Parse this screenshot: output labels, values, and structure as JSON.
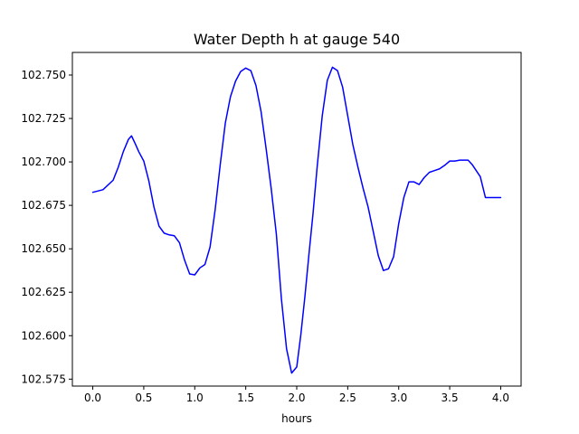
{
  "chart_data": {
    "type": "line",
    "title": "Water Depth h at gauge 540",
    "xlabel": "hours",
    "ylabel": "",
    "xlim": [
      -0.2,
      4.2
    ],
    "ylim": [
      102.571,
      102.763
    ],
    "xticks": [
      0.0,
      0.5,
      1.0,
      1.5,
      2.0,
      2.5,
      3.0,
      3.5,
      4.0
    ],
    "xtick_labels": [
      "0.0",
      "0.5",
      "1.0",
      "1.5",
      "2.0",
      "2.5",
      "3.0",
      "3.5",
      "4.0"
    ],
    "yticks": [
      102.575,
      102.6,
      102.625,
      102.65,
      102.675,
      102.7,
      102.725,
      102.75
    ],
    "ytick_labels": [
      "102.575",
      "102.600",
      "102.625",
      "102.650",
      "102.675",
      "102.700",
      "102.725",
      "102.750"
    ],
    "grid": false,
    "legend": "none",
    "series": [
      {
        "color": "#0000ff",
        "x": [
          0.0,
          0.1,
          0.2,
          0.25,
          0.3,
          0.35,
          0.38,
          0.42,
          0.45,
          0.5,
          0.55,
          0.6,
          0.65,
          0.7,
          0.75,
          0.8,
          0.85,
          0.9,
          0.95,
          1.0,
          1.05,
          1.1,
          1.15,
          1.2,
          1.25,
          1.3,
          1.35,
          1.4,
          1.45,
          1.5,
          1.55,
          1.6,
          1.65,
          1.7,
          1.75,
          1.8,
          1.85,
          1.9,
          1.95,
          2.0,
          2.04,
          2.08,
          2.12,
          2.16,
          2.2,
          2.25,
          2.3,
          2.35,
          2.4,
          2.45,
          2.5,
          2.55,
          2.6,
          2.65,
          2.7,
          2.75,
          2.8,
          2.85,
          2.9,
          2.95,
          3.0,
          3.05,
          3.1,
          3.15,
          3.2,
          3.25,
          3.3,
          3.35,
          3.4,
          3.45,
          3.5,
          3.55,
          3.6,
          3.65,
          3.68,
          3.72,
          3.8,
          3.85,
          3.9,
          3.95,
          4.0
        ],
        "y": [
          102.6825,
          102.684,
          102.6895,
          102.697,
          102.706,
          102.713,
          102.715,
          102.71,
          102.706,
          102.7005,
          102.689,
          102.674,
          102.663,
          102.659,
          102.658,
          102.6575,
          102.6535,
          102.6435,
          102.6355,
          102.635,
          102.639,
          102.641,
          102.651,
          102.6725,
          102.6985,
          102.7225,
          102.7375,
          102.7465,
          102.752,
          102.754,
          102.7525,
          102.744,
          102.729,
          102.7075,
          102.6845,
          102.6585,
          102.621,
          102.5925,
          102.5785,
          102.582,
          102.6005,
          102.6225,
          102.647,
          102.6705,
          102.697,
          102.7265,
          102.747,
          102.7545,
          102.7525,
          102.743,
          102.7265,
          102.71,
          102.697,
          102.685,
          102.674,
          102.66,
          102.646,
          102.6375,
          102.6385,
          102.6455,
          102.6645,
          102.6795,
          102.6885,
          102.6885,
          102.687,
          102.691,
          102.694,
          102.695,
          102.696,
          102.698,
          102.7005,
          102.7005,
          102.701,
          102.701,
          102.701,
          102.6985,
          102.6915,
          102.6795,
          102.6795,
          102.6795,
          102.6795
        ]
      }
    ]
  }
}
